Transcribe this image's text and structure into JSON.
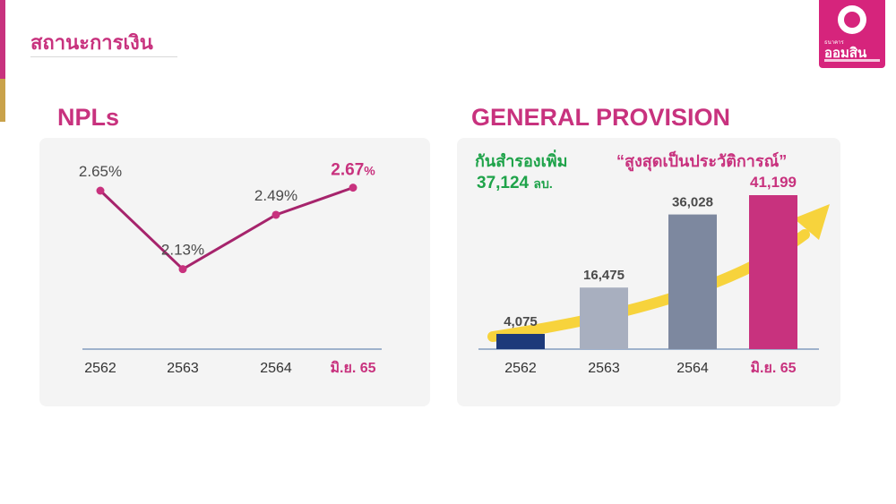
{
  "header": {
    "title": "สถานะการเงิน"
  },
  "logo": {
    "small_text": "ธนาคาร",
    "name": "ออมสิน"
  },
  "colors": {
    "brand": "#c8327e",
    "gold": "#c9a24a",
    "green": "#1fa34a",
    "navy": "#1d3a7a"
  },
  "npl": {
    "title": "NPLs",
    "chart_data": {
      "type": "line",
      "categories": [
        "2562",
        "2563",
        "2564",
        "มิ.ย. 65"
      ],
      "values": [
        2.65,
        2.13,
        2.49,
        2.67
      ],
      "value_labels": [
        "2.65%",
        "2.13%",
        "2.49%",
        "2.67%"
      ],
      "highlight_index": 3,
      "line_color": "#a6246c",
      "ylim": [
        1.6,
        3.0
      ]
    }
  },
  "provision": {
    "title": "GENERAL PROVISION",
    "note_label": "กันสำรองเพิ่ม",
    "note_value": "37,124",
    "note_unit": "ลบ.",
    "headline": "“สูงสุดเป็นประวัติการณ์”",
    "chart_data": {
      "type": "bar",
      "categories": [
        "2562",
        "2563",
        "2564",
        "มิ.ย. 65"
      ],
      "values": [
        4075,
        16475,
        36028,
        41199
      ],
      "value_labels": [
        "4,075",
        "16,475",
        "36,028",
        "41,199"
      ],
      "colors": [
        "#1d3a7a",
        "#a8afbf",
        "#7d889f",
        "#c8327e"
      ],
      "highlight_index": 3,
      "ylim": [
        0,
        45000
      ],
      "trend_arrow": true
    }
  }
}
